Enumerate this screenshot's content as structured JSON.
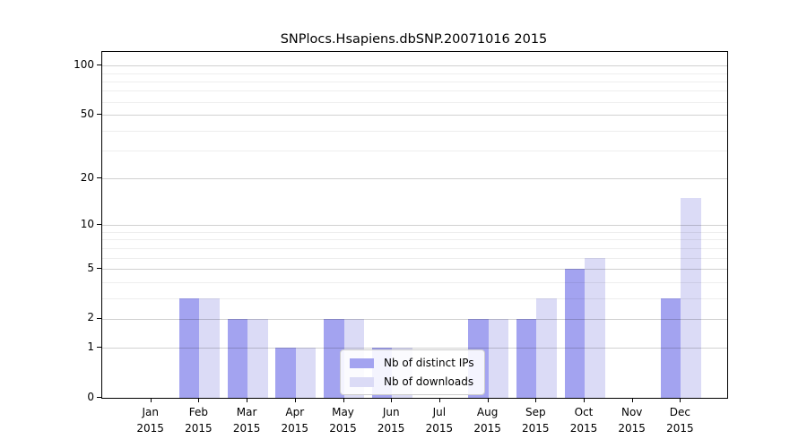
{
  "title": "SNPlocs.Hsapiens.dbSNP.20071016 2015",
  "colors": {
    "distinct_ips_bar": "#a3a3f0",
    "downloads_bar": "#dbdbf6",
    "axis": "#000000",
    "grid_major": "#d4d4d4",
    "grid_minor": "#efefef",
    "legend_border": "#cccccc"
  },
  "legend": {
    "items": [
      {
        "label": "Nb of distinct IPs",
        "color": "#a3a3f0"
      },
      {
        "label": "Nb of downloads",
        "color": "#dbdbf6"
      }
    ]
  },
  "chart_data": {
    "type": "bar",
    "title": "SNPlocs.Hsapiens.dbSNP.20071016 2015",
    "xlabel": "",
    "ylabel": "",
    "categories": [
      "Jan 2015",
      "Feb 2015",
      "Mar 2015",
      "Apr 2015",
      "May 2015",
      "Jun 2015",
      "Jul 2015",
      "Aug 2015",
      "Sep 2015",
      "Oct 2015",
      "Nov 2015",
      "Dec 2015"
    ],
    "series": [
      {
        "name": "Nb of distinct IPs",
        "color": "#a3a3f0",
        "values": [
          0,
          3,
          2,
          1,
          2,
          1,
          0,
          2,
          2,
          5,
          0,
          3
        ]
      },
      {
        "name": "Nb of downloads",
        "color": "#dbdbf6",
        "values": [
          0,
          3,
          2,
          1,
          2,
          1,
          0,
          2,
          3,
          6,
          0,
          15
        ]
      }
    ],
    "y_scale": "log1p",
    "ylim": [
      0,
      121
    ],
    "y_ticks": [
      0,
      1,
      2,
      5,
      10,
      20,
      50,
      100
    ],
    "y_minor_gridlines": [
      3,
      4,
      6,
      7,
      8,
      9,
      30,
      40,
      60,
      70,
      80,
      90
    ],
    "grid": true,
    "legend_position": "inside lower center"
  }
}
